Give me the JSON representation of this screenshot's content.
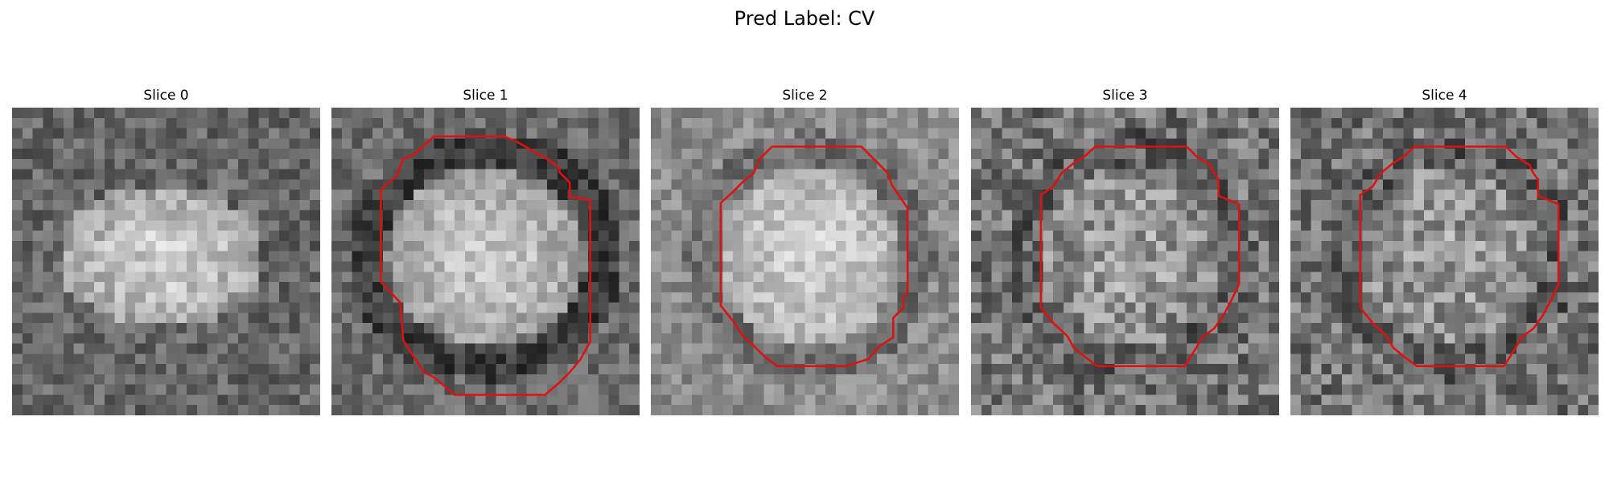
{
  "figure": {
    "title": "Pred Label: CV"
  },
  "colormap": "gray",
  "contour_color": "#e01010",
  "slices": [
    {
      "title": "Slice 0",
      "has_contour": false
    },
    {
      "title": "Slice 1",
      "has_contour": true
    },
    {
      "title": "Slice 2",
      "has_contour": true
    },
    {
      "title": "Slice 3",
      "has_contour": true
    },
    {
      "title": "Slice 4",
      "has_contour": true
    }
  ]
}
